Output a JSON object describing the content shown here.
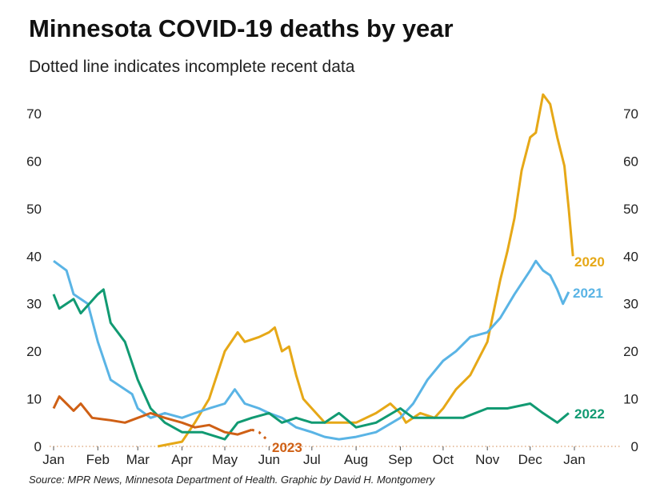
{
  "chart_data": {
    "type": "line",
    "title": "Minnesota COVID-19 deaths by year",
    "subtitle": "Dotted line indicates incomplete recent data",
    "source": "Source: MPR News, Minnesota Department of Health. Graphic by David H. Montgomery",
    "ylim": [
      0,
      75
    ],
    "yticks": [
      0,
      10,
      20,
      30,
      40,
      50,
      60,
      70
    ],
    "xticks": [
      "Jan",
      "Feb",
      "Mar",
      "Apr",
      "May",
      "Jun",
      "Jul",
      "Aug",
      "Sep",
      "Oct",
      "Nov",
      "Dec",
      "Jan"
    ],
    "grid": false,
    "series": [
      {
        "name": "2020",
        "color": "#e6a817",
        "points": [
          [
            "03-15",
            0
          ],
          [
            "04-01",
            1
          ],
          [
            "04-10",
            5
          ],
          [
            "04-20",
            10
          ],
          [
            "05-01",
            20
          ],
          [
            "05-10",
            24
          ],
          [
            "05-15",
            22
          ],
          [
            "05-25",
            23
          ],
          [
            "06-01",
            24
          ],
          [
            "06-05",
            25
          ],
          [
            "06-10",
            20
          ],
          [
            "06-15",
            21
          ],
          [
            "06-20",
            15
          ],
          [
            "06-25",
            10
          ],
          [
            "07-01",
            8
          ],
          [
            "07-10",
            5
          ],
          [
            "07-20",
            5
          ],
          [
            "08-01",
            5
          ],
          [
            "08-15",
            7
          ],
          [
            "08-25",
            9
          ],
          [
            "09-01",
            7
          ],
          [
            "09-05",
            5
          ],
          [
            "09-15",
            7
          ],
          [
            "09-25",
            6
          ],
          [
            "10-01",
            8
          ],
          [
            "10-10",
            12
          ],
          [
            "10-20",
            15
          ],
          [
            "11-01",
            22
          ],
          [
            "11-10",
            35
          ],
          [
            "11-15",
            41
          ],
          [
            "11-20",
            48
          ],
          [
            "11-25",
            58
          ],
          [
            "12-01",
            65
          ],
          [
            "12-05",
            66
          ],
          [
            "12-10",
            74
          ],
          [
            "12-15",
            72
          ],
          [
            "12-20",
            65
          ],
          [
            "12-25",
            59
          ],
          [
            "12-28",
            50
          ],
          [
            "12-31",
            40
          ]
        ]
      },
      {
        "name": "2021",
        "color": "#5ab4e5",
        "points": [
          [
            "01-01",
            39
          ],
          [
            "01-10",
            37
          ],
          [
            "01-15",
            32
          ],
          [
            "01-25",
            30
          ],
          [
            "02-01",
            22
          ],
          [
            "02-10",
            14
          ],
          [
            "02-15",
            13
          ],
          [
            "02-25",
            11
          ],
          [
            "03-01",
            8
          ],
          [
            "03-10",
            6
          ],
          [
            "03-20",
            7
          ],
          [
            "04-01",
            6
          ],
          [
            "04-10",
            7
          ],
          [
            "04-20",
            8
          ],
          [
            "05-01",
            9
          ],
          [
            "05-08",
            12
          ],
          [
            "05-15",
            9
          ],
          [
            "05-25",
            8
          ],
          [
            "06-01",
            7
          ],
          [
            "06-10",
            6
          ],
          [
            "06-20",
            4
          ],
          [
            "07-01",
            3
          ],
          [
            "07-10",
            2
          ],
          [
            "07-20",
            1.5
          ],
          [
            "08-01",
            2
          ],
          [
            "08-15",
            3
          ],
          [
            "09-01",
            6
          ],
          [
            "09-10",
            9
          ],
          [
            "09-20",
            14
          ],
          [
            "10-01",
            18
          ],
          [
            "10-10",
            20
          ],
          [
            "10-20",
            23
          ],
          [
            "11-01",
            24
          ],
          [
            "11-10",
            27
          ],
          [
            "11-20",
            32
          ],
          [
            "12-01",
            37
          ],
          [
            "12-05",
            39
          ],
          [
            "12-10",
            37
          ],
          [
            "12-15",
            36
          ],
          [
            "12-20",
            33
          ],
          [
            "12-24",
            30
          ],
          [
            "12-28",
            32.5
          ]
        ]
      },
      {
        "name": "2022",
        "color": "#119a72",
        "points": [
          [
            "01-01",
            32
          ],
          [
            "01-05",
            29
          ],
          [
            "01-15",
            31
          ],
          [
            "01-20",
            28
          ],
          [
            "02-01",
            32
          ],
          [
            "02-05",
            33
          ],
          [
            "02-10",
            26
          ],
          [
            "02-20",
            22
          ],
          [
            "03-01",
            14
          ],
          [
            "03-10",
            8
          ],
          [
            "03-20",
            5
          ],
          [
            "04-01",
            3
          ],
          [
            "04-15",
            3
          ],
          [
            "05-01",
            1.5
          ],
          [
            "05-10",
            5
          ],
          [
            "05-20",
            6
          ],
          [
            "06-01",
            7
          ],
          [
            "06-10",
            5
          ],
          [
            "06-20",
            6
          ],
          [
            "07-01",
            5
          ],
          [
            "07-10",
            5
          ],
          [
            "07-20",
            7
          ],
          [
            "08-01",
            4
          ],
          [
            "08-15",
            5
          ],
          [
            "09-01",
            8
          ],
          [
            "09-10",
            6
          ],
          [
            "09-20",
            6
          ],
          [
            "10-01",
            6
          ],
          [
            "10-15",
            6
          ],
          [
            "11-01",
            8
          ],
          [
            "11-15",
            8
          ],
          [
            "12-01",
            9
          ],
          [
            "12-10",
            7
          ],
          [
            "12-20",
            5
          ],
          [
            "12-28",
            7
          ]
        ]
      },
      {
        "name": "2023",
        "color": "#cf6015",
        "points": [
          [
            "01-01",
            8
          ],
          [
            "01-05",
            10.5
          ],
          [
            "01-10",
            9
          ],
          [
            "01-15",
            7.5
          ],
          [
            "01-20",
            9
          ],
          [
            "01-28",
            6
          ],
          [
            "02-10",
            5.5
          ],
          [
            "02-20",
            5
          ],
          [
            "03-01",
            6
          ],
          [
            "03-10",
            7
          ],
          [
            "03-20",
            6
          ],
          [
            "04-01",
            5
          ],
          [
            "04-10",
            4
          ],
          [
            "04-20",
            4.5
          ],
          [
            "05-01",
            3
          ],
          [
            "05-10",
            2.5
          ],
          [
            "05-20",
            3.5
          ]
        ],
        "incomplete": [
          [
            "05-20",
            3.5
          ],
          [
            "05-25",
            3
          ],
          [
            "06-01",
            1
          ]
        ]
      }
    ]
  }
}
